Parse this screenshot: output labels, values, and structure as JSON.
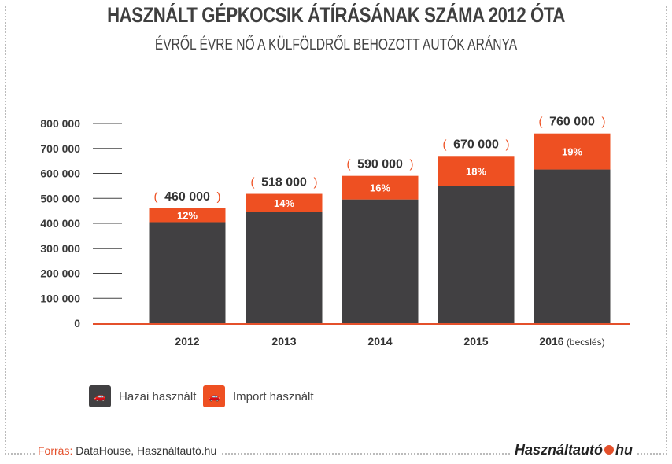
{
  "title": "HASZNÁLT GÉPKOCSIK ÁTÍRÁSÁNAK SZÁMA 2012 ÓTA",
  "subtitle": "ÉVRŐL ÉVRE NŐ A KÜLFÖLDRŐL BEHOZOTT AUTÓK ARÁNYA",
  "legend": {
    "domestic": "Hazai használt",
    "import": "Import használt",
    "icon": "car-icon"
  },
  "source": {
    "label": "Forrás:",
    "text": "DataHouse, Használtautó.hu"
  },
  "logo": {
    "left": "Használtautó",
    "right": "hu"
  },
  "colors": {
    "domestic": "#414042",
    "import": "#ee5022",
    "axis": "#e4502b"
  },
  "chart_data": {
    "type": "bar",
    "stacked": true,
    "categories": [
      "2012",
      "2013",
      "2014",
      "2015",
      "2016"
    ],
    "category_notes": [
      "",
      "",
      "",
      "",
      "(becslés)"
    ],
    "totals": [
      460000,
      518000,
      590000,
      670000,
      760000
    ],
    "total_labels": [
      "460 000",
      "518 000",
      "590 000",
      "670 000",
      "760 000"
    ],
    "import_share_labels": [
      "12%",
      "14%",
      "16%",
      "18%",
      "19%"
    ],
    "series": [
      {
        "name": "Hazai használt",
        "values": [
          404800,
          445480,
          495600,
          549400,
          615600
        ]
      },
      {
        "name": "Import használt",
        "values": [
          55200,
          72520,
          94400,
          120600,
          144400
        ]
      }
    ],
    "yticks": [
      0,
      100000,
      200000,
      300000,
      400000,
      500000,
      600000,
      700000,
      800000
    ],
    "ytick_labels": [
      "0",
      "100 000",
      "200 000",
      "300 000",
      "400 000",
      "500 000",
      "600 000",
      "700 000",
      "800 000"
    ],
    "ylim": [
      0,
      800000
    ],
    "legend_position": "bottom-left"
  }
}
